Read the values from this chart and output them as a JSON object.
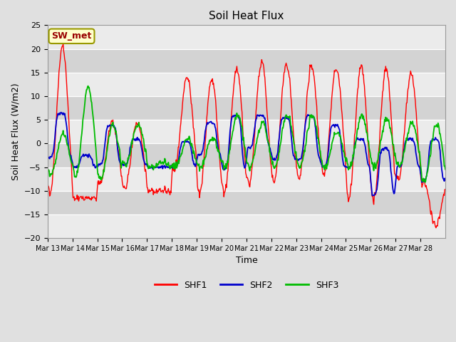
{
  "title": "Soil Heat Flux",
  "xlabel": "Time",
  "ylabel": "Soil Heat Flux (W/m2)",
  "ylim": [
    -20,
    25
  ],
  "figure_bg": "#e0e0e0",
  "plot_bg": "#d8d8d8",
  "annotation_text": "SW_met",
  "annotation_bg": "#ffffcc",
  "annotation_fg": "#990000",
  "annotation_border": "#999900",
  "legend_entries": [
    "SHF1",
    "SHF2",
    "SHF3"
  ],
  "line_colors": [
    "#ff0000",
    "#0000cc",
    "#00bb00"
  ],
  "xtick_labels": [
    "Mar 13",
    "Mar 14",
    "Mar 15",
    "Mar 16",
    "Mar 17",
    "Mar 18",
    "Mar 19",
    "Mar 20",
    "Mar 21",
    "Mar 22",
    "Mar 23",
    "Mar 24",
    "Mar 25",
    "Mar 26",
    "Mar 27",
    "Mar 28"
  ],
  "ytick_values": [
    -20,
    -15,
    -10,
    -5,
    0,
    5,
    10,
    15,
    20,
    25
  ],
  "num_days": 16,
  "shf1_peaks": [
    20.5,
    -11.5,
    4.5,
    4.5,
    -10,
    14.0,
    13.5,
    15.8,
    17.5,
    17.0,
    16.5,
    16.0,
    16.5,
    15.8,
    15.0,
    -17.5
  ],
  "shf1_troughs": [
    -10.5,
    -11.5,
    -8.5,
    -9.5,
    -10,
    -5.5,
    -10.5,
    -10.5,
    -8.5,
    -8.0,
    -7.5,
    -6.5,
    -11.5,
    -12,
    -8,
    -8
  ],
  "shf2_peaks": [
    6.5,
    -2.5,
    4.0,
    1.0,
    -5.0,
    0.5,
    4.5,
    6.0,
    6.0,
    5.5,
    6.0,
    4.0,
    1.0,
    -1.0,
    1.0,
    1.0
  ],
  "shf2_troughs": [
    -3.0,
    -5.0,
    -4.5,
    -4.5,
    -5.0,
    -5.0,
    -2.5,
    -5.5,
    -1.0,
    -3.5,
    -3.5,
    -5.0,
    -5.0,
    -11.0,
    -5.0,
    -8.0
  ],
  "shf3_peaks": [
    2.0,
    12.0,
    4.0,
    4.0,
    -4.0,
    1.0,
    1.0,
    6.0,
    4.5,
    6.2,
    6.0,
    2.5,
    6.0,
    5.2,
    4.5,
    4.0
  ],
  "shf3_troughs": [
    -6.5,
    -7.0,
    -7.5,
    -4.5,
    -5.0,
    -5.0,
    -5.0,
    -5.0,
    -5.0,
    -5.0,
    -5.0,
    -5.0,
    -5.0,
    -5.0,
    -5.0,
    -8.0
  ]
}
